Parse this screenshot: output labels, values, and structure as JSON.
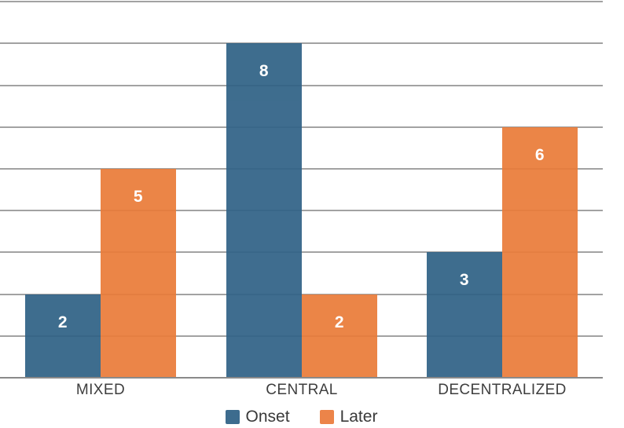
{
  "chart_data": {
    "type": "bar",
    "title": "",
    "xlabel": "",
    "ylabel": "",
    "categories": [
      "MIXED",
      "CENTRAL",
      "DECENTRALIZED"
    ],
    "series": [
      {
        "name": "Onset",
        "color": "#306286",
        "legend_color": "#3d6c8e",
        "values": [
          2,
          8,
          3
        ]
      },
      {
        "name": "Later",
        "color": "#ea7c3a",
        "legend_color": "#ec8449",
        "values": [
          5,
          2,
          6
        ]
      }
    ],
    "ylim": [
      0,
      9
    ],
    "gridline_step": 1,
    "grid": true,
    "y_axis_tick_labels_visible": false,
    "value_labels": [
      [
        2,
        8,
        3
      ],
      [
        5,
        2,
        6
      ]
    ],
    "legend_position": "bottom"
  },
  "colors": {
    "background": "#ffffff",
    "gridline": "#a2a2a2",
    "baseline": "#8a8a8a",
    "axis_label_text": "#3e3e3e",
    "legend_text": "#3a3a3a",
    "bar_value_text": "#ffffff"
  }
}
